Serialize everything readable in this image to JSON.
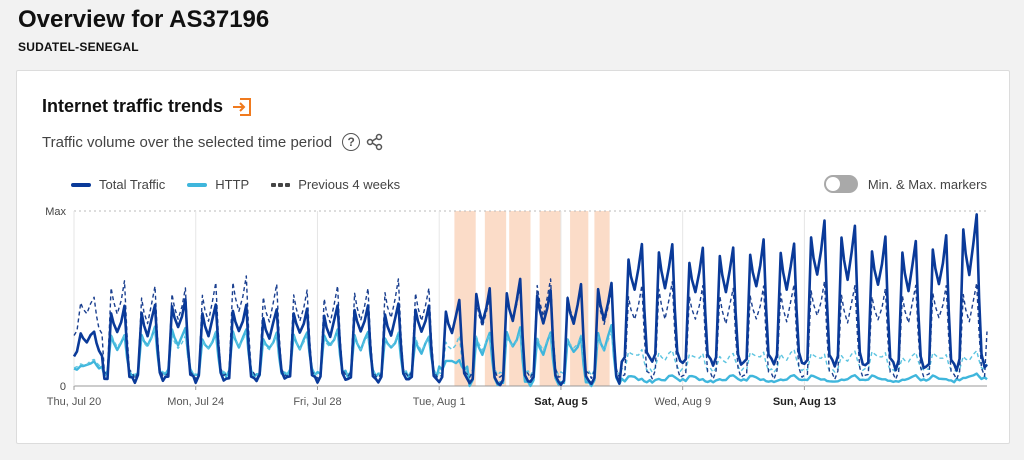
{
  "header": {
    "title": "Overview for AS37196",
    "subtitle": "SUDATEL-SENEGAL"
  },
  "card": {
    "title": "Internet traffic trends",
    "description": "Traffic volume over the selected time period",
    "help_glyph": "?"
  },
  "legend": {
    "total_label": "Total Traffic",
    "http_label": "HTTP",
    "prev_label": "Previous 4 weeks"
  },
  "toggle": {
    "label": "Min. & Max. markers",
    "on": false
  },
  "colors": {
    "total": "#0a3a99",
    "http": "#3fb6dc",
    "prev_total": "#1a3f8f",
    "prev_http": "#5cc4e0",
    "outage": "#fbdcc8",
    "accent": "#f07a1e"
  },
  "chart_data": {
    "type": "line",
    "title": "Internet traffic trends",
    "subtitle": "Traffic volume over the selected time period",
    "x_unit": "days since Thu, Jul 20",
    "xlim": [
      0,
      30
    ],
    "ylim": [
      0,
      1
    ],
    "y_tick_labels": [
      "0",
      "Max"
    ],
    "x_ticks": [
      {
        "x": 0,
        "label": "Thu, Jul 20",
        "bold": false
      },
      {
        "x": 4,
        "label": "Mon, Jul 24",
        "bold": false
      },
      {
        "x": 8,
        "label": "Fri, Jul 28",
        "bold": false
      },
      {
        "x": 12,
        "label": "Tue, Aug 1",
        "bold": false
      },
      {
        "x": 16,
        "label": "Sat, Aug 5",
        "bold": true
      },
      {
        "x": 20,
        "label": "Wed, Aug 9",
        "bold": false
      },
      {
        "x": 24,
        "label": "Sun, Aug 13",
        "bold": true
      }
    ],
    "outage_periods": [
      [
        12.5,
        13.2
      ],
      [
        13.5,
        14.2
      ],
      [
        14.3,
        15.0
      ],
      [
        15.3,
        16.0
      ],
      [
        16.3,
        16.9
      ],
      [
        17.1,
        17.6
      ]
    ],
    "series": [
      {
        "name": "Total Traffic",
        "style": "solid",
        "daily_peaks": [
          0.31,
          0.46,
          0.46,
          0.5,
          0.46,
          0.47,
          0.43,
          0.45,
          0.45,
          0.47,
          0.46,
          0.47,
          0.48,
          0.57,
          0.6,
          0.56,
          0.57,
          0.6,
          0.8,
          0.82,
          0.78,
          0.8,
          0.83,
          0.82,
          0.94,
          0.92,
          0.85,
          0.83,
          0.86,
          0.98,
          0.7
        ],
        "daily_troughs": [
          0.18,
          0.03,
          0.03,
          0.04,
          0.03,
          0.03,
          0.04,
          0.04,
          0.03,
          0.03,
          0.03,
          0.03,
          0.03,
          0.01,
          0.01,
          0.02,
          0.01,
          0.01,
          0.14,
          0.14,
          0.13,
          0.12,
          0.13,
          0.13,
          0.12,
          0.12,
          0.11,
          0.1,
          0.1,
          0.1,
          0.11
        ]
      },
      {
        "name": "HTTP",
        "style": "solid",
        "daily_peaks": [
          0.13,
          0.3,
          0.33,
          0.34,
          0.3,
          0.33,
          0.3,
          0.31,
          0.32,
          0.31,
          0.3,
          0.28,
          0.15,
          0.3,
          0.34,
          0.3,
          0.29,
          0.34,
          0.05,
          0.05,
          0.05,
          0.05,
          0.05,
          0.05,
          0.05,
          0.05,
          0.05,
          0.05,
          0.05,
          0.06,
          0.06
        ],
        "daily_troughs": [
          0.1,
          0.06,
          0.06,
          0.07,
          0.06,
          0.06,
          0.06,
          0.07,
          0.07,
          0.06,
          0.06,
          0.06,
          0.1,
          0.01,
          0.01,
          0.01,
          0.01,
          0.01,
          0.03,
          0.03,
          0.03,
          0.03,
          0.03,
          0.03,
          0.03,
          0.03,
          0.03,
          0.03,
          0.03,
          0.04,
          0.04
        ]
      },
      {
        "name": "Previous 4 weeks (Total)",
        "style": "dashed",
        "daily_peaks": [
          0.5,
          0.61,
          0.56,
          0.57,
          0.58,
          0.64,
          0.57,
          0.56,
          0.56,
          0.57,
          0.6,
          0.57,
          0.48,
          0.52,
          0.57,
          0.62,
          0.57,
          0.55,
          0.57,
          0.6,
          0.57,
          0.56,
          0.57,
          0.58,
          0.6,
          0.57,
          0.56,
          0.57,
          0.58,
          0.58,
          0.38
        ],
        "daily_troughs": [
          0.3,
          0.06,
          0.05,
          0.05,
          0.05,
          0.06,
          0.05,
          0.05,
          0.05,
          0.05,
          0.05,
          0.05,
          0.05,
          0.05,
          0.05,
          0.05,
          0.05,
          0.05,
          0.05,
          0.05,
          0.05,
          0.05,
          0.05,
          0.05,
          0.05,
          0.05,
          0.05,
          0.05,
          0.05,
          0.05,
          0.3
        ]
      },
      {
        "name": "Previous 4 weeks (HTTP)",
        "style": "dashed",
        "daily_peaks": [
          0.14,
          0.31,
          0.32,
          0.3,
          0.3,
          0.32,
          0.29,
          0.3,
          0.31,
          0.3,
          0.3,
          0.29,
          0.28,
          0.3,
          0.31,
          0.3,
          0.29,
          0.3,
          0.21,
          0.2,
          0.19,
          0.18,
          0.2,
          0.2,
          0.19,
          0.19,
          0.2,
          0.18,
          0.19,
          0.19,
          0.16
        ],
        "daily_troughs": [
          0.11,
          0.07,
          0.07,
          0.07,
          0.07,
          0.07,
          0.07,
          0.07,
          0.07,
          0.07,
          0.07,
          0.07,
          0.07,
          0.07,
          0.07,
          0.07,
          0.07,
          0.07,
          0.09,
          0.09,
          0.09,
          0.09,
          0.09,
          0.09,
          0.09,
          0.09,
          0.09,
          0.09,
          0.09,
          0.09,
          0.12
        ]
      }
    ]
  }
}
